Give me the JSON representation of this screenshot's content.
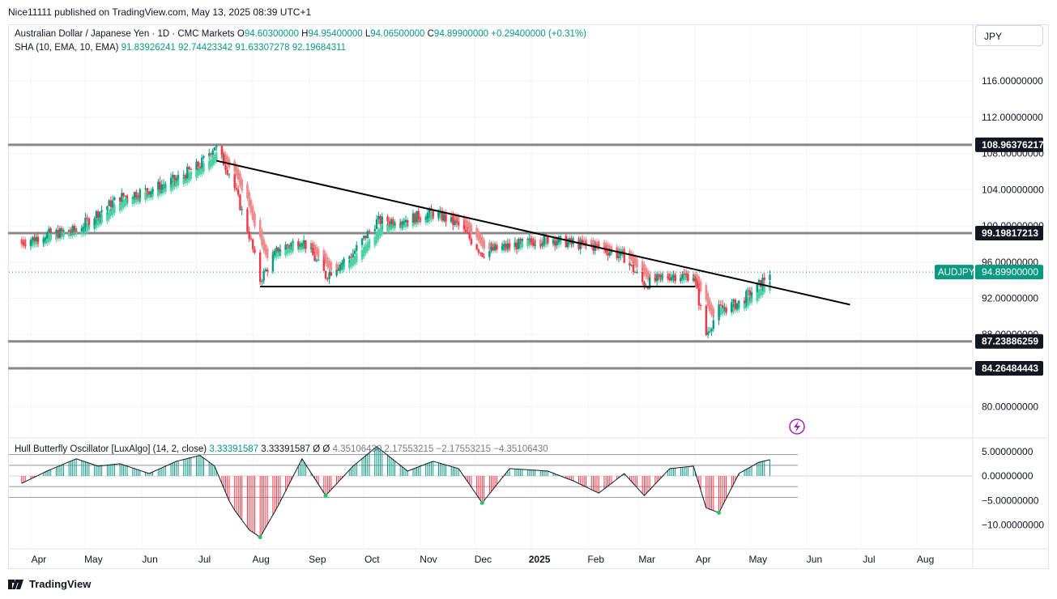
{
  "header": {
    "published": "Nice11111 published on TradingView.com, May 13, 2025 08:39 UTC+1"
  },
  "legend": {
    "symbol": "Australian Dollar / Japanese Yen · 1D · CMC Markets",
    "o_label": "O",
    "o": "94.60300000",
    "h_label": "H",
    "h": "94.95400000",
    "l_label": "L",
    "l": "94.06500000",
    "c_label": "C",
    "c": "94.89900000",
    "change": "+0.29400000 (+0.31%)",
    "sha_label": "SHA (10, EMA, 10, EMA)",
    "sha_v1": "91.83926241",
    "sha_v2": "92.74423342",
    "sha_v3": "91.63307278",
    "sha_v4": "92.19684311",
    "osc_label": "Hull Butterfly Oscillator [LuxAlgo] (14, 2, close)",
    "osc_v1": "3.33391587",
    "osc_v2": "3.33391587",
    "osc_v3": "Ø",
    "osc_v4": "Ø",
    "osc_v5": "4.35106430",
    "osc_v6": "2.17553215",
    "osc_v7": "−2.17553215",
    "osc_v8": "−4.35106430"
  },
  "currency_button": "JPY",
  "footer": {
    "brand": "TradingView"
  },
  "colors": {
    "up": "#089981",
    "down": "#f23645",
    "sha_up": "#4fd1a5",
    "sha_down": "#ef8a8a",
    "level": "#888888"
  },
  "chart_data": {
    "type": "candlestick",
    "symbol_tag": "AUDJPY",
    "last_price": "94.89900000",
    "price_axis": {
      "ticks": [
        "116.00000000",
        "112.00000000",
        "108.00000000",
        "104.00000000",
        "100.00000000",
        "96.00000000",
        "92.00000000",
        "88.00000000",
        "80.00000000"
      ],
      "tick_values": [
        116,
        112,
        108,
        104,
        100,
        96,
        92,
        88,
        80
      ]
    },
    "levels": [
      {
        "value": 108.96376217,
        "label": "108.96376217"
      },
      {
        "value": 99.19817213,
        "label": "99.19817213"
      },
      {
        "value": 87.23886259,
        "label": "87.23886259"
      },
      {
        "value": 84.26484443,
        "label": "84.26484443"
      }
    ],
    "time_axis": [
      "Apr",
      "May",
      "Jun",
      "Jul",
      "Aug",
      "Sep",
      "Oct",
      "Nov",
      "Dec",
      "2025",
      "Feb",
      "Mar",
      "Apr",
      "May",
      "Jun",
      "Jul",
      "Aug"
    ],
    "trendlines": [
      {
        "from": [
          "2024-07-12",
          107.2
        ],
        "to": [
          "2025-06-25",
          91.3
        ]
      },
      {
        "from": [
          "2024-08-05",
          93.3
        ],
        "to": [
          "2025-04-01",
          93.3
        ]
      }
    ],
    "close_path": [
      [
        "2024-03-27",
        98.2
      ],
      [
        "2024-04-10",
        99.1
      ],
      [
        "2024-04-26",
        99.5
      ],
      [
        "2024-05-08",
        101.5
      ],
      [
        "2024-05-20",
        103.2
      ],
      [
        "2024-06-05",
        104.0
      ],
      [
        "2024-06-20",
        105.2
      ],
      [
        "2024-07-03",
        106.8
      ],
      [
        "2024-07-11",
        108.9
      ],
      [
        "2024-07-20",
        105.5
      ],
      [
        "2024-07-30",
        99.0
      ],
      [
        "2024-08-05",
        94.0
      ],
      [
        "2024-08-15",
        97.5
      ],
      [
        "2024-08-28",
        98.5
      ],
      [
        "2024-09-10",
        94.5
      ],
      [
        "2024-09-25",
        97.0
      ],
      [
        "2024-10-08",
        100.5
      ],
      [
        "2024-10-25",
        100.8
      ],
      [
        "2024-11-08",
        101.5
      ],
      [
        "2024-11-22",
        100.0
      ],
      [
        "2024-12-05",
        97.0
      ],
      [
        "2024-12-20",
        97.8
      ],
      [
        "2025-01-10",
        98.6
      ],
      [
        "2025-01-24",
        98.0
      ],
      [
        "2025-02-07",
        97.6
      ],
      [
        "2025-02-21",
        96.5
      ],
      [
        "2025-03-04",
        93.5
      ],
      [
        "2025-03-18",
        94.5
      ],
      [
        "2025-03-31",
        94.5
      ],
      [
        "2025-04-07",
        88.0
      ],
      [
        "2025-04-14",
        90.8
      ],
      [
        "2025-04-25",
        91.5
      ],
      [
        "2025-05-06",
        93.5
      ],
      [
        "2025-05-12",
        94.9
      ]
    ],
    "oscillator": {
      "axis_ticks": [
        "5.00000000",
        "0.00000000",
        "−5.00000000",
        "−10.00000000"
      ],
      "tick_values": [
        5,
        0,
        -5,
        -10
      ],
      "upper_levels": [
        4.3510643,
        2.17553215
      ],
      "lower_levels": [
        -2.17553215,
        -4.3510643
      ],
      "values_path": [
        [
          "2024-03-27",
          -1.5
        ],
        [
          "2024-04-10",
          1.0
        ],
        [
          "2024-04-26",
          3.5
        ],
        [
          "2024-05-08",
          2.0
        ],
        [
          "2024-05-20",
          2.5
        ],
        [
          "2024-06-05",
          0.5
        ],
        [
          "2024-06-20",
          3.0
        ],
        [
          "2024-07-03",
          4.2
        ],
        [
          "2024-07-11",
          2.0
        ],
        [
          "2024-07-20",
          -6.0
        ],
        [
          "2024-07-30",
          -11.0
        ],
        [
          "2024-08-05",
          -12.5
        ],
        [
          "2024-08-15",
          -6.0
        ],
        [
          "2024-08-28",
          3.5
        ],
        [
          "2024-09-10",
          -4.0
        ],
        [
          "2024-09-25",
          2.0
        ],
        [
          "2024-10-08",
          6.0
        ],
        [
          "2024-10-25",
          1.0
        ],
        [
          "2024-11-08",
          3.0
        ],
        [
          "2024-11-22",
          1.5
        ],
        [
          "2024-12-05",
          -5.5
        ],
        [
          "2024-12-20",
          1.5
        ],
        [
          "2025-01-10",
          1.0
        ],
        [
          "2025-01-24",
          -1.0
        ],
        [
          "2025-02-07",
          -3.5
        ],
        [
          "2025-02-21",
          0.5
        ],
        [
          "2025-03-04",
          -4.0
        ],
        [
          "2025-03-18",
          1.5
        ],
        [
          "2025-03-31",
          2.0
        ],
        [
          "2025-04-07",
          -6.5
        ],
        [
          "2025-04-14",
          -7.5
        ],
        [
          "2025-04-25",
          0.5
        ],
        [
          "2025-05-06",
          2.8
        ],
        [
          "2025-05-12",
          3.33
        ]
      ]
    }
  }
}
